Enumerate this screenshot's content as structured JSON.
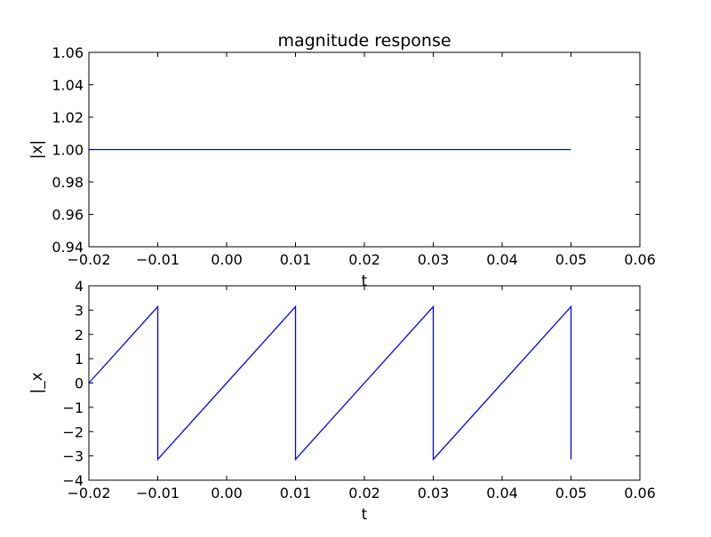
{
  "figure": {
    "title": "magnitude response"
  },
  "chart_data": [
    {
      "type": "line",
      "title": "magnitude response",
      "xlabel": "t",
      "ylabel": "|x|",
      "xlim": [
        -0.02,
        0.06
      ],
      "ylim": [
        0.94,
        1.06
      ],
      "xticks": [
        -0.02,
        -0.01,
        0.0,
        0.01,
        0.02,
        0.03,
        0.04,
        0.05,
        0.06
      ],
      "xtick_labels": [
        "−0.02",
        "−0.01",
        "0.00",
        "0.01",
        "0.02",
        "0.03",
        "0.04",
        "0.05",
        "0.06"
      ],
      "yticks": [
        0.94,
        0.96,
        0.98,
        1.0,
        1.02,
        1.04,
        1.06
      ],
      "ytick_labels": [
        "0.94",
        "0.96",
        "0.98",
        "1.00",
        "1.02",
        "1.04",
        "1.06"
      ],
      "grid": false,
      "line_color": "#0000ff",
      "series": [
        {
          "x": [
            -0.02,
            0.05
          ],
          "y": [
            1.0,
            1.0
          ]
        }
      ]
    },
    {
      "type": "line",
      "title": "",
      "xlabel": "t",
      "ylabel": "|_x",
      "xlim": [
        -0.02,
        0.06
      ],
      "ylim": [
        -4,
        4
      ],
      "xticks": [
        -0.02,
        -0.01,
        0.0,
        0.01,
        0.02,
        0.03,
        0.04,
        0.05,
        0.06
      ],
      "xtick_labels": [
        "−0.02",
        "−0.01",
        "0.00",
        "0.01",
        "0.02",
        "0.03",
        "0.04",
        "0.05",
        "0.06"
      ],
      "yticks": [
        -4,
        -3,
        -2,
        -1,
        0,
        1,
        2,
        3,
        4
      ],
      "ytick_labels": [
        "−4",
        "−3",
        "−2",
        "−1",
        "0",
        "1",
        "2",
        "3",
        "4"
      ],
      "grid": false,
      "line_color": "#0000ff",
      "series": [
        {
          "x": [
            -0.02,
            -0.01,
            -0.01,
            0.01,
            0.01,
            0.03,
            0.03,
            0.05,
            0.05
          ],
          "y": [
            0.0,
            3.1416,
            -3.1416,
            3.1416,
            -3.1416,
            3.1416,
            -3.1416,
            3.1416,
            -3.1416
          ]
        }
      ]
    }
  ]
}
